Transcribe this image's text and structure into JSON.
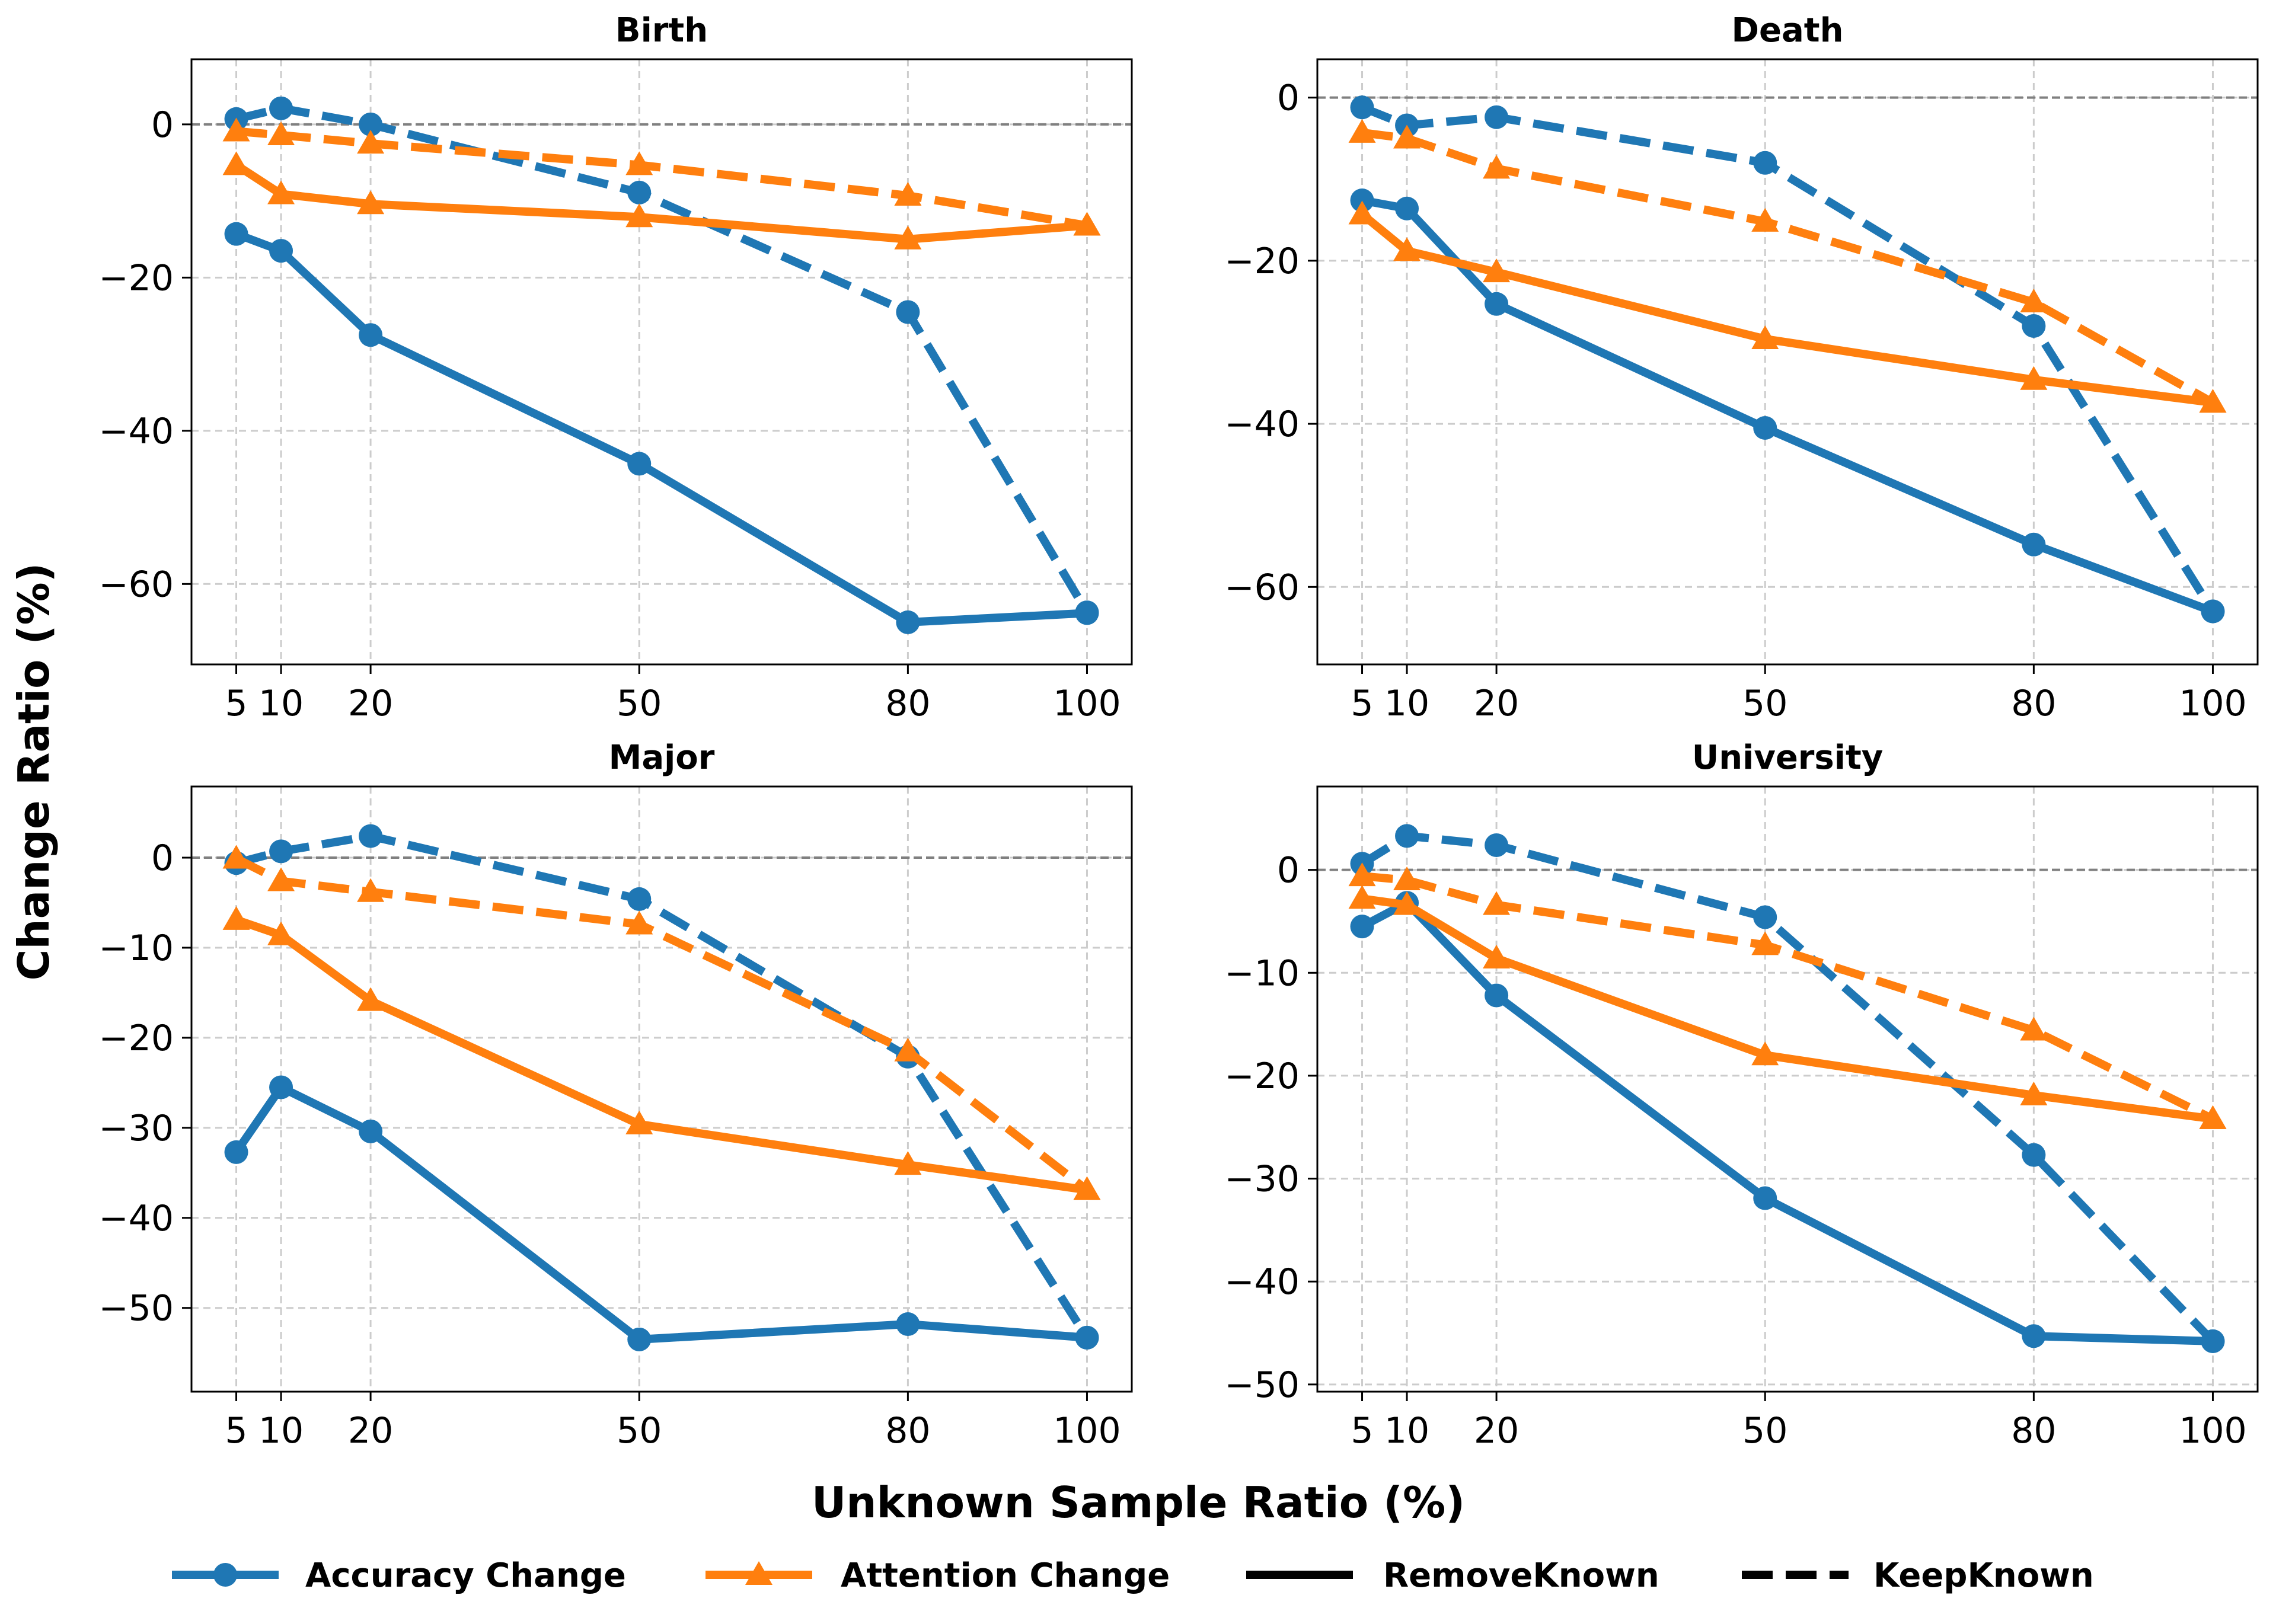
{
  "figure": {
    "xlabel": "Unknown Sample Ratio (%)",
    "ylabel": "Change Ratio (%)"
  },
  "colors": {
    "accuracy": "#1f77b4",
    "attention": "#ff7f0e",
    "zero_line": "#808080",
    "grid": "#cccccc"
  },
  "legend": {
    "accuracy": "Accuracy Change",
    "attention": "Attention Change",
    "remove": "RemoveKnown",
    "keep": "KeepKnown"
  },
  "chart_data": [
    {
      "type": "line",
      "title": "Birth",
      "x": [
        5,
        10,
        20,
        50,
        80,
        100
      ],
      "xlim": [
        0,
        105
      ],
      "ylim": [
        -70.5,
        8.5
      ],
      "yticks": [
        0,
        -20,
        -40,
        -60
      ],
      "series": [
        {
          "name": "Accuracy Change (RemoveKnown)",
          "metric": "accuracy",
          "style": "solid",
          "values": [
            -14.3,
            -16.5,
            -27.5,
            -44.3,
            -65.0,
            -63.8
          ]
        },
        {
          "name": "Accuracy Change (KeepKnown)",
          "metric": "accuracy",
          "style": "dashed",
          "values": [
            0.7,
            2.1,
            0.0,
            -8.9,
            -24.5,
            -63.7
          ]
        },
        {
          "name": "Attention Change (RemoveKnown)",
          "metric": "attention",
          "style": "solid",
          "values": [
            -5.3,
            -9.1,
            -10.4,
            -12.1,
            -15.0,
            -13.2
          ]
        },
        {
          "name": "Attention Change (KeepKnown)",
          "metric": "attention",
          "style": "dashed",
          "values": [
            -0.9,
            -1.4,
            -2.5,
            -5.3,
            -9.3,
            -13.2
          ]
        }
      ]
    },
    {
      "type": "line",
      "title": "Death",
      "x": [
        5,
        10,
        20,
        50,
        80,
        100
      ],
      "xlim": [
        0,
        105
      ],
      "ylim": [
        -69.5,
        4.7
      ],
      "yticks": [
        0,
        -20,
        -40,
        -60
      ],
      "series": [
        {
          "name": "Accuracy Change (RemoveKnown)",
          "metric": "accuracy",
          "style": "solid",
          "values": [
            -12.6,
            -13.6,
            -25.3,
            -40.5,
            -54.8,
            -63.0
          ]
        },
        {
          "name": "Accuracy Change (KeepKnown)",
          "metric": "accuracy",
          "style": "dashed",
          "values": [
            -1.2,
            -3.4,
            -2.4,
            -8.0,
            -28.0,
            -63.0
          ]
        },
        {
          "name": "Attention Change (RemoveKnown)",
          "metric": "attention",
          "style": "solid",
          "values": [
            -14.3,
            -18.8,
            -21.4,
            -29.6,
            -34.6,
            -37.4
          ]
        },
        {
          "name": "Attention Change (KeepKnown)",
          "metric": "attention",
          "style": "dashed",
          "values": [
            -4.3,
            -5.0,
            -8.7,
            -15.2,
            -25.1,
            -37.4
          ]
        }
      ]
    },
    {
      "type": "line",
      "title": "Major",
      "x": [
        5,
        10,
        20,
        50,
        80,
        100
      ],
      "xlim": [
        0,
        105
      ],
      "ylim": [
        -59.3,
        7.9
      ],
      "yticks": [
        0,
        -10,
        -20,
        -30,
        -40,
        -50
      ],
      "series": [
        {
          "name": "Accuracy Change (RemoveKnown)",
          "metric": "accuracy",
          "style": "solid",
          "values": [
            -32.7,
            -25.5,
            -30.4,
            -53.5,
            -51.8,
            -53.3
          ]
        },
        {
          "name": "Accuracy Change (KeepKnown)",
          "metric": "accuracy",
          "style": "dashed",
          "values": [
            -0.6,
            0.7,
            2.4,
            -4.6,
            -22.1,
            -53.3
          ]
        },
        {
          "name": "Attention Change (RemoveKnown)",
          "metric": "attention",
          "style": "solid",
          "values": [
            -6.9,
            -8.6,
            -15.9,
            -29.6,
            -34.1,
            -36.9
          ]
        },
        {
          "name": "Attention Change (KeepKnown)",
          "metric": "attention",
          "style": "dashed",
          "values": [
            -0.1,
            -2.6,
            -3.8,
            -7.4,
            -21.5,
            -36.9
          ]
        }
      ]
    },
    {
      "type": "line",
      "title": "University",
      "x": [
        5,
        10,
        20,
        50,
        80,
        100
      ],
      "xlim": [
        0,
        105
      ],
      "ylim": [
        -50.7,
        8.1
      ],
      "yticks": [
        0,
        -10,
        -20,
        -30,
        -40,
        -50
      ],
      "series": [
        {
          "name": "Accuracy Change (RemoveKnown)",
          "metric": "accuracy",
          "style": "solid",
          "values": [
            -5.5,
            -3.2,
            -12.2,
            -31.9,
            -45.3,
            -45.8
          ]
        },
        {
          "name": "Accuracy Change (KeepKnown)",
          "metric": "accuracy",
          "style": "dashed",
          "values": [
            0.6,
            3.3,
            2.4,
            -4.6,
            -27.7,
            -45.8
          ]
        },
        {
          "name": "Attention Change (RemoveKnown)",
          "metric": "attention",
          "style": "solid",
          "values": [
            -2.8,
            -3.4,
            -8.6,
            -18.0,
            -21.9,
            -24.2
          ]
        },
        {
          "name": "Attention Change (KeepKnown)",
          "metric": "attention",
          "style": "dashed",
          "values": [
            -0.6,
            -1.0,
            -3.4,
            -7.3,
            -15.6,
            -24.2
          ]
        }
      ]
    }
  ]
}
